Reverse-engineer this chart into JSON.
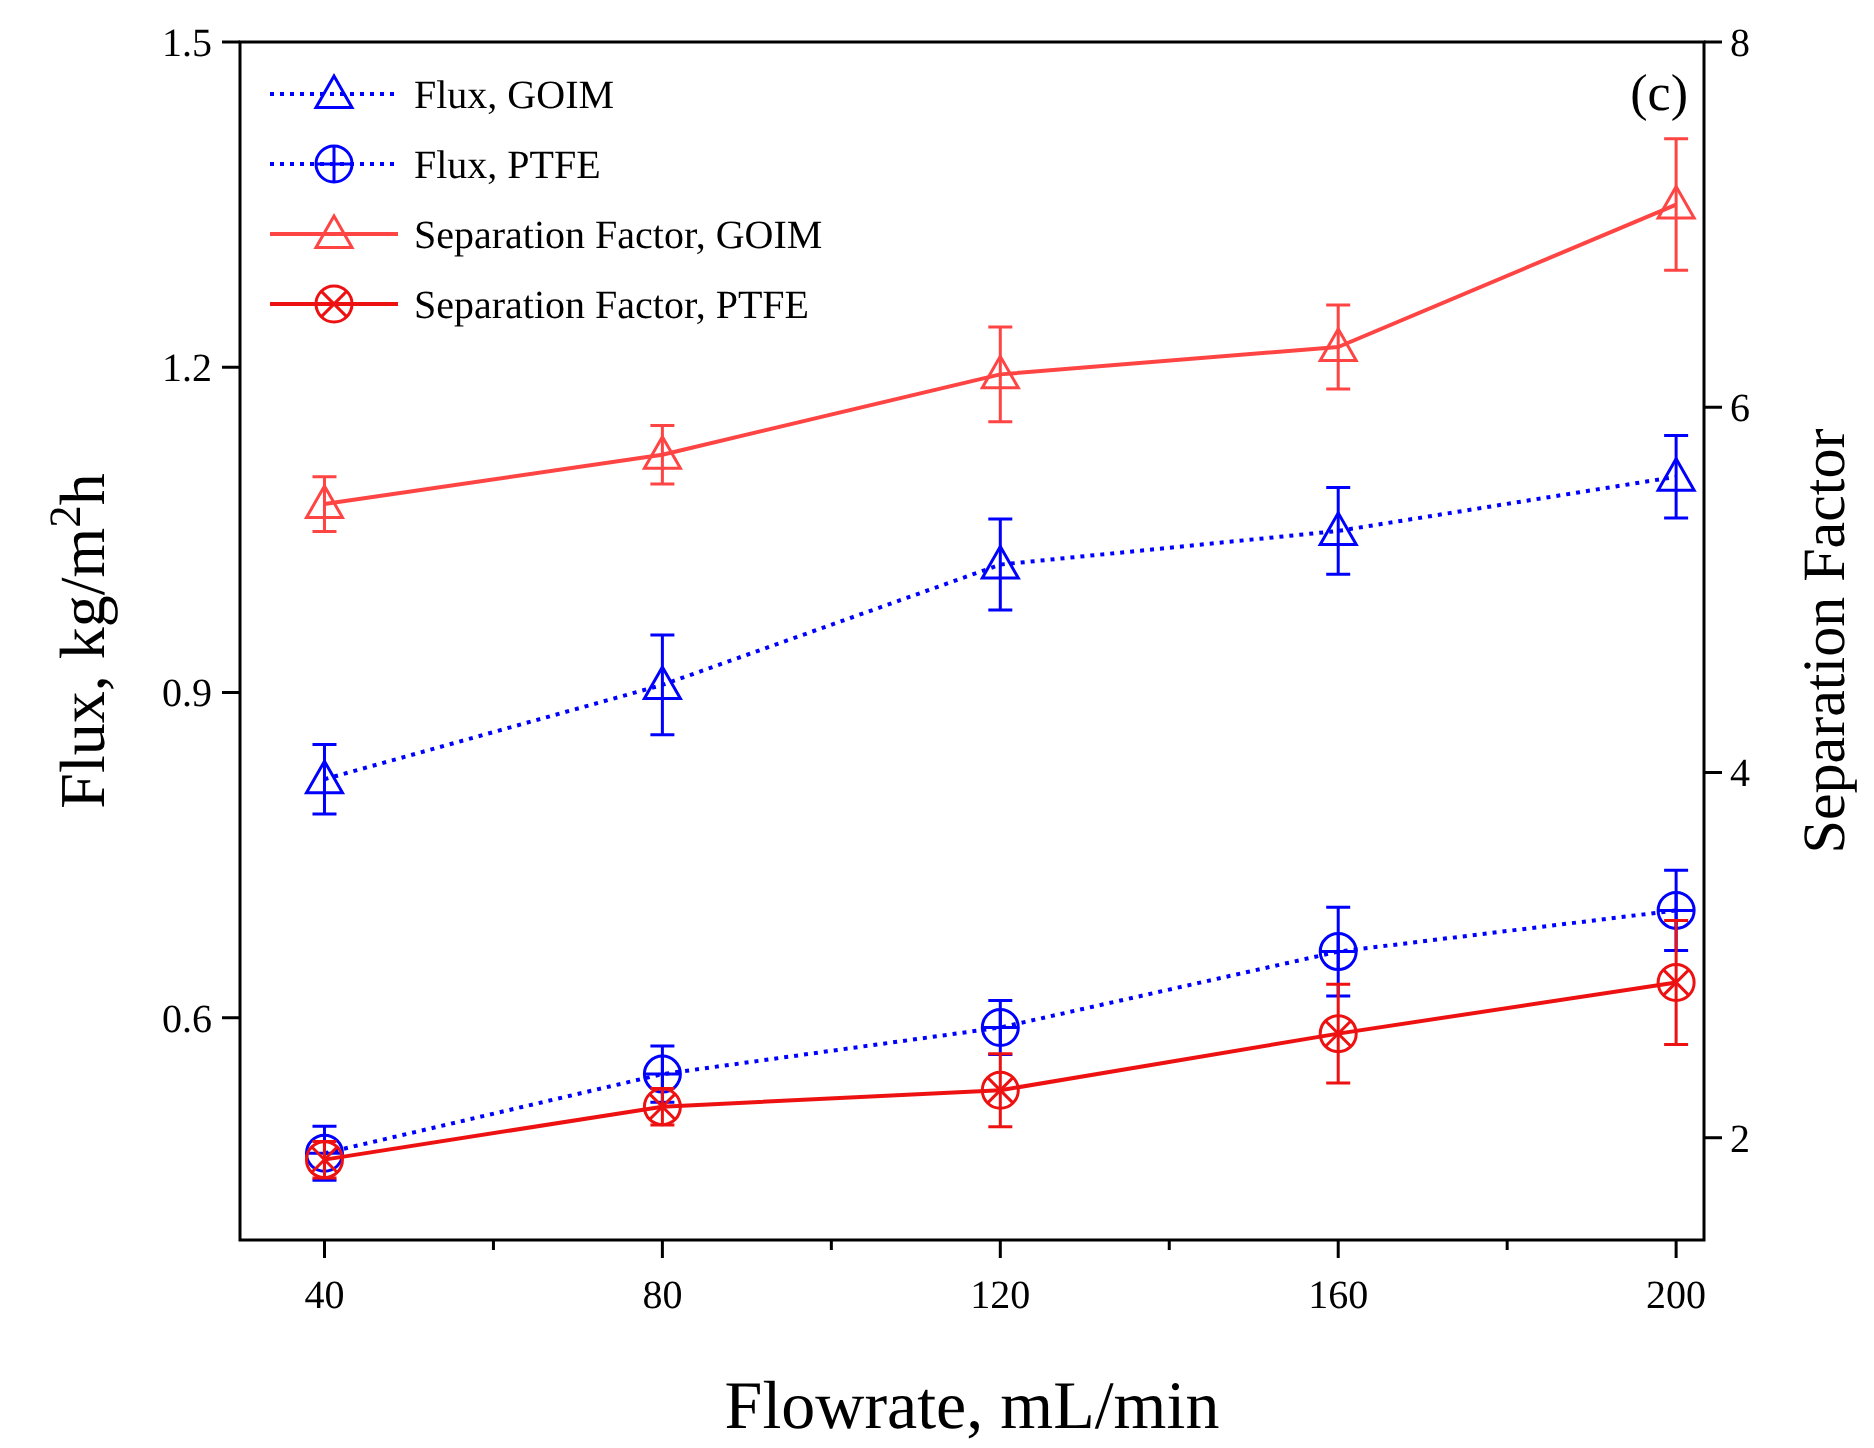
{
  "chart_data": {
    "type": "line",
    "xlabel": "Flowrate, mL/min",
    "ylabel": "Flux, kg/m$^{2}$h",
    "y2label": "Separation Factor",
    "x": [
      40,
      80,
      120,
      160,
      200
    ],
    "xlim": [
      30,
      203.3
    ],
    "xticks": [
      40,
      {
        "value": 60,
        "label": null
      },
      80,
      {
        "value": 100,
        "label": null
      },
      120,
      {
        "value": 140,
        "label": null
      },
      160,
      {
        "value": 180,
        "label": null
      },
      200
    ],
    "ylim": [
      0.395,
      1.5
    ],
    "yticks": [
      0.6,
      0.9,
      1.2,
      1.5
    ],
    "y2lim": [
      1.44,
      8
    ],
    "y2ticks": [
      2,
      4,
      6,
      8
    ],
    "grid": false,
    "legend": "top left",
    "annotations": [
      "(c)"
    ],
    "series": [
      {
        "name": "Flux, GOIM",
        "color": "#0000ff",
        "marker": "triangle",
        "line_style": "dotted",
        "values": [
          0.82,
          0.907,
          1.018,
          1.049,
          1.099
        ],
        "errors": [
          0.032,
          0.046,
          0.042,
          0.04,
          0.038
        ]
      },
      {
        "name": "Flux, PTFE",
        "color": "#0000ff",
        "marker": "circle",
        "line_style": "dotted",
        "values": [
          0.475,
          0.548,
          0.591,
          0.661,
          0.699
        ],
        "errors": [
          0.025,
          0.026,
          0.025,
          0.041,
          0.037
        ]
      },
      {
        "name": "Separation Factor, GOIM",
        "color": "#ff4444",
        "marker": "triangle",
        "line_style": "solid",
        "axis": "y2",
        "values": [
          5.47,
          5.74,
          6.18,
          6.33,
          7.11
        ],
        "errors": [
          0.15,
          0.16,
          0.26,
          0.23,
          0.36
        ]
      },
      {
        "name": "Separation Factor, PTFE",
        "color": "#ee1111",
        "marker": "cross",
        "line_style": "solid",
        "axis": "y2",
        "values": [
          1.88,
          2.17,
          2.26,
          2.57,
          2.85
        ],
        "errors": [
          0.1,
          0.1,
          0.2,
          0.27,
          0.34
        ]
      }
    ]
  }
}
